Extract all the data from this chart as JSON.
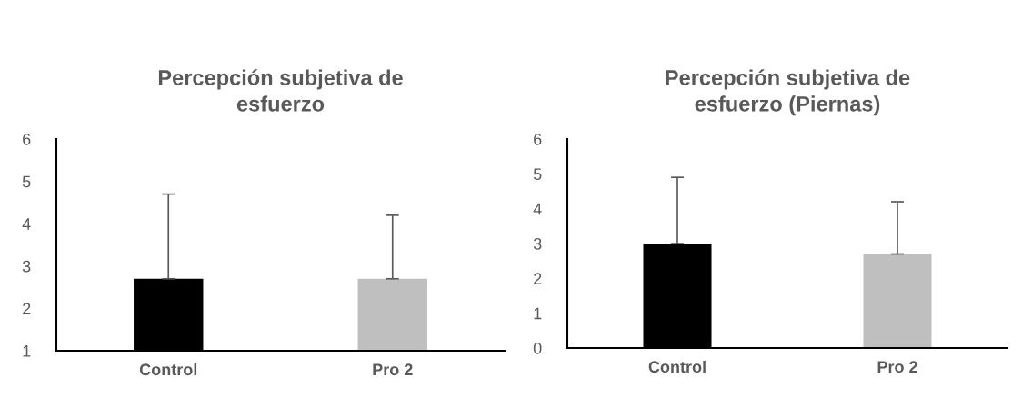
{
  "chart_data": [
    {
      "type": "bar",
      "title": "Percepción subjetiva de\nesfuerzo",
      "categories": [
        "Control",
        "Pro 2"
      ],
      "values": [
        2.7,
        2.7
      ],
      "colors": [
        "#000000",
        "#bfbfbf"
      ],
      "errors": [
        [
          2.7,
          4.7
        ],
        [
          2.7,
          4.2
        ]
      ],
      "ylim": [
        1,
        6
      ],
      "yticks": [
        1,
        2,
        3,
        4,
        5,
        6
      ],
      "grid": false
    },
    {
      "type": "bar",
      "title": "Percepción subjetiva de\nesfuerzo (Piernas)",
      "categories": [
        "Control",
        "Pro 2"
      ],
      "values": [
        3.0,
        2.7
      ],
      "colors": [
        "#000000",
        "#bfbfbf"
      ],
      "errors": [
        [
          3.0,
          4.9
        ],
        [
          2.7,
          4.2
        ]
      ],
      "ylim": [
        0,
        6
      ],
      "yticks": [
        0,
        1,
        2,
        3,
        4,
        5,
        6
      ],
      "grid": false
    }
  ]
}
